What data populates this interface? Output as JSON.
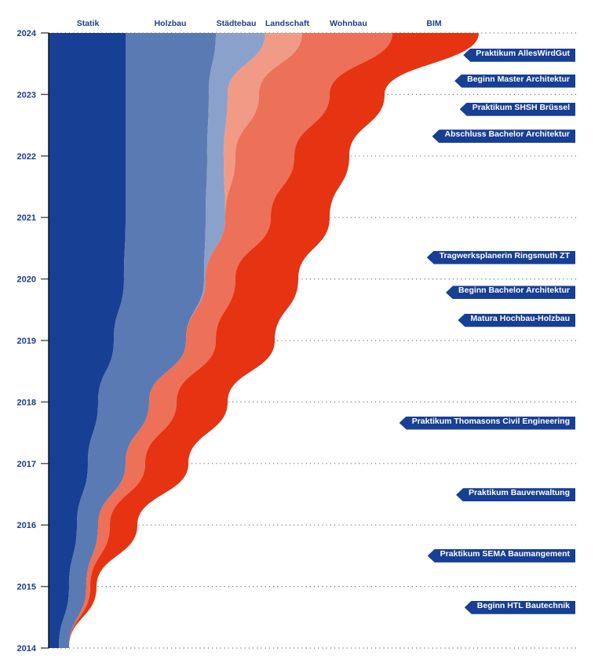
{
  "chart_data": {
    "type": "area",
    "subtype": "stacked-stream",
    "title": "",
    "y_axis": {
      "range": [
        2014,
        2024
      ],
      "ticks": [
        "2014",
        "2015",
        "2016",
        "2017",
        "2018",
        "2019",
        "2020",
        "2021",
        "2022",
        "2023",
        "2024"
      ]
    },
    "years": [
      2014,
      2015,
      2016,
      2017,
      2018,
      2019,
      2020,
      2021,
      2022,
      2023,
      2024
    ],
    "series": [
      {
        "name": "Statik",
        "color": "#173f94",
        "values": [
          13,
          26,
          36,
          50,
          63,
          83,
          96,
          98,
          98,
          98,
          98
        ]
      },
      {
        "name": "Holzbau",
        "color": "#5a7ab4",
        "values": [
          13,
          22,
          27,
          48,
          65,
          92,
          102,
          102,
          104,
          106,
          115
        ]
      },
      {
        "name": "Städtebau",
        "color": "#8aa1cb",
        "values": [
          0,
          0,
          0,
          0,
          0,
          0,
          2,
          25,
          21,
          24,
          63
        ]
      },
      {
        "name": "Landschaft",
        "color": "#f19a86",
        "values": [
          0,
          0,
          0,
          0,
          0,
          0,
          0,
          0,
          15,
          40,
          47
        ]
      },
      {
        "name": "Wohnbau",
        "color": "#ed7059",
        "values": [
          0,
          5,
          15,
          25,
          35,
          38,
          38,
          58,
          75,
          90,
          115
        ]
      },
      {
        "name": "BIM",
        "color": "#e63312",
        "values": [
          0,
          8,
          35,
          55,
          65,
          75,
          80,
          75,
          70,
          70,
          110
        ]
      }
    ],
    "events": [
      {
        "label": "Praktikum AllesWirdGut",
        "year": 2023.64
      },
      {
        "label": "Beginn Master Architektur",
        "year": 2023.22
      },
      {
        "label": "Praktikum SHSH Brüssel",
        "year": 2022.76
      },
      {
        "label": "Abschluss Bachelor Architektur",
        "year": 2022.32
      },
      {
        "label": "Tragwerksplanerin Ringsmuth ZT",
        "year": 2020.35
      },
      {
        "label": "Beginn Bachelor Architektur",
        "year": 2019.78
      },
      {
        "label": "Matura Hochbau-Holzbau",
        "year": 2019.33
      },
      {
        "label": "Praktikum Thomasons Civil Engineering",
        "year": 2017.66
      },
      {
        "label": "Praktikum Bauverwaltung",
        "year": 2016.49
      },
      {
        "label": "Praktikum SEMA Baumangement",
        "year": 2015.5
      },
      {
        "label": "Beginn HTL Bautechnik",
        "year": 2014.66
      }
    ],
    "grid": true,
    "legend": "top"
  },
  "colors": {
    "text": "#1e3d8f",
    "tag": "#173f94"
  }
}
